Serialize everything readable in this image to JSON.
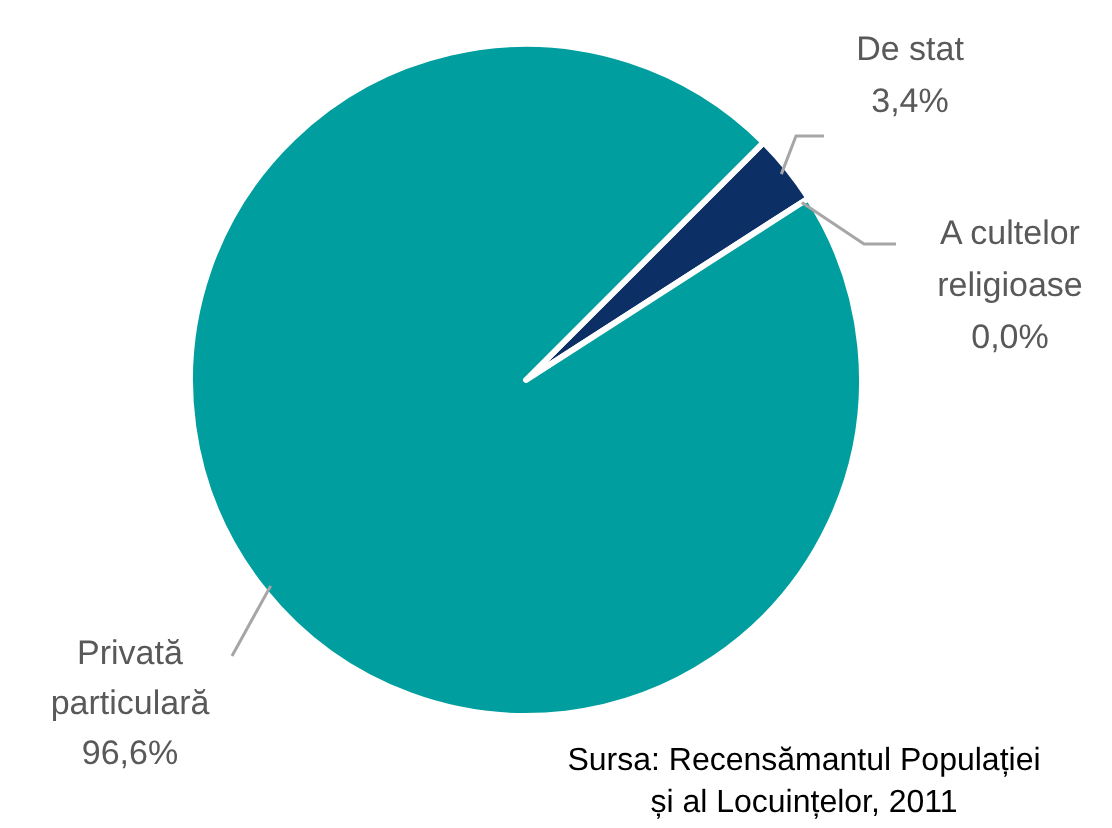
{
  "chart_data": {
    "type": "pie",
    "categories": [
      "De stat",
      "A cultelor religioase",
      "Privată particulară"
    ],
    "values": [
      3.4,
      0,
      96.6
    ],
    "value_labels": [
      "3,4%",
      "0,0%",
      "96,6%"
    ],
    "colors": [
      "#0c2f66",
      "#1a4a80",
      "#009e9e"
    ],
    "annotations": [
      "Sursa: Recensămantul Populației și al Locuințelor, 2011"
    ]
  }
}
